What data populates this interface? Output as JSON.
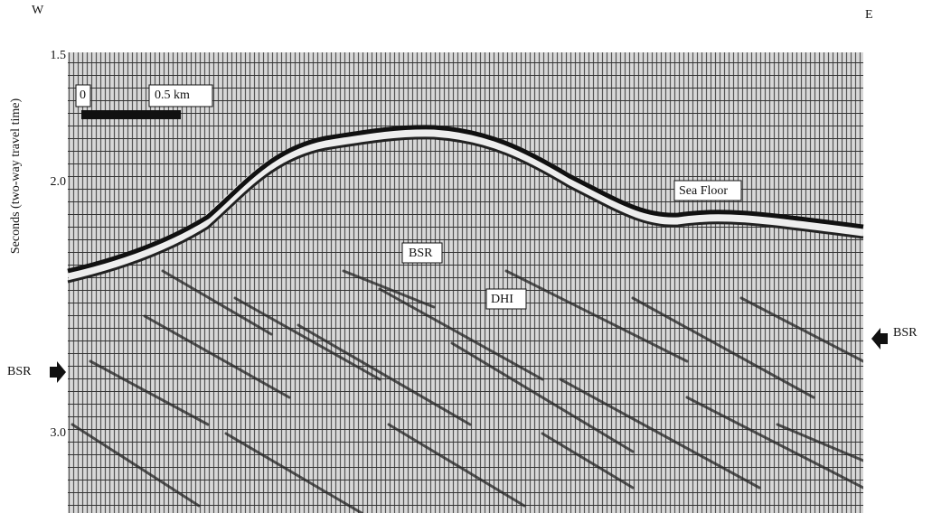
{
  "header": {
    "west": "W",
    "east": "E"
  },
  "axis": {
    "label": "Seconds (two-way travel time)",
    "ticks": [
      "1.5",
      "2.0",
      "3.0"
    ]
  },
  "scale_bar": {
    "start": "0",
    "end": "0.5 km"
  },
  "annotations": {
    "sea_floor": "Sea Floor",
    "bsr_center": "BSR",
    "dhi": "DHI",
    "bsr_left": "BSR",
    "bsr_right": "BSR"
  }
}
